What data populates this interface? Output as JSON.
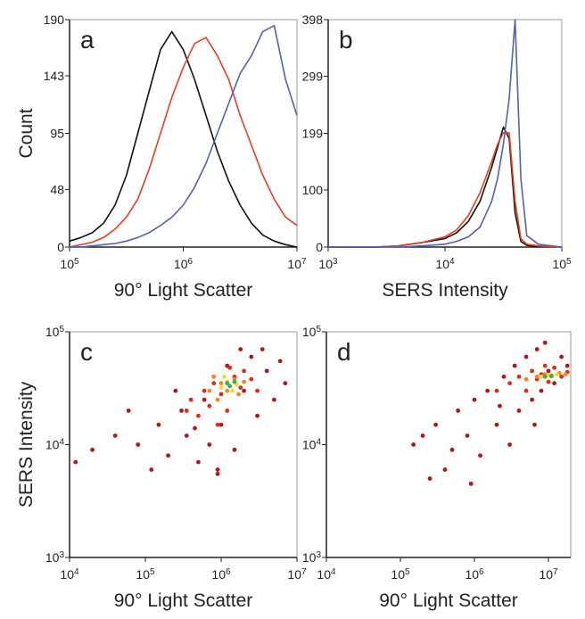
{
  "chart_data": [
    {
      "type": "line",
      "label": "a",
      "xlabel": "90° Light Scatter",
      "ylabel": "Count",
      "xscale": "log",
      "xlim": [
        100000,
        10000000
      ],
      "ylim": [
        0,
        190
      ],
      "xticks": [
        {
          "value": 100000,
          "label": "10^5"
        },
        {
          "value": 1000000,
          "label": "10^6"
        },
        {
          "value": 10000000,
          "label": "10^7"
        }
      ],
      "yticks": [
        0,
        48,
        95,
        143,
        190
      ],
      "x": [
        100000,
        125893,
        158489,
        199526,
        251189,
        316228,
        398107,
        501187,
        630957,
        794328,
        1000000,
        1258925,
        1584893,
        1995262,
        2511886,
        3162278,
        3981072,
        5011872,
        6309573,
        7943282,
        10000000
      ],
      "series": [
        {
          "color": "#111111",
          "values": [
            5,
            8,
            12,
            20,
            35,
            60,
            95,
            130,
            165,
            180,
            165,
            140,
            110,
            80,
            55,
            35,
            20,
            10,
            5,
            2,
            0
          ]
        },
        {
          "color": "#e8401c",
          "values": [
            0,
            2,
            4,
            8,
            15,
            25,
            40,
            65,
            95,
            125,
            150,
            170,
            175,
            160,
            140,
            110,
            85,
            60,
            40,
            25,
            18
          ]
        },
        {
          "color": "#5560b0",
          "values": [
            0,
            0,
            1,
            2,
            3,
            5,
            8,
            12,
            18,
            25,
            35,
            50,
            70,
            95,
            120,
            145,
            160,
            180,
            185,
            140,
            110
          ]
        }
      ]
    },
    {
      "type": "line",
      "label": "b",
      "xlabel": "SERS Intensity",
      "xscale": "log",
      "xlim": [
        1000,
        100000
      ],
      "ylim": [
        0,
        398
      ],
      "xticks": [
        {
          "value": 1000,
          "label": "10^3"
        },
        {
          "value": 10000,
          "label": "10^4"
        },
        {
          "value": 100000,
          "label": "10^5"
        }
      ],
      "yticks": [
        0,
        100,
        199,
        299,
        398
      ],
      "x": [
        1000,
        1585,
        2512,
        3981,
        6310,
        10000,
        12589,
        15849,
        19953,
        25119,
        28184,
        31623,
        35481,
        39811,
        44668,
        50119,
        63096,
        100000
      ],
      "series": [
        {
          "color": "#111111",
          "values": [
            0,
            0,
            0,
            2,
            8,
            15,
            25,
            45,
            80,
            140,
            175,
            210,
            190,
            60,
            10,
            3,
            1,
            0
          ]
        },
        {
          "color": "#e8401c",
          "values": [
            0,
            0,
            0,
            2,
            8,
            18,
            30,
            55,
            95,
            150,
            180,
            200,
            200,
            80,
            15,
            5,
            2,
            0
          ]
        },
        {
          "color": "#5560b0",
          "values": [
            0,
            0,
            0,
            0,
            2,
            5,
            10,
            18,
            35,
            80,
            120,
            180,
            260,
            398,
            120,
            20,
            5,
            0
          ]
        }
      ]
    },
    {
      "type": "scatter",
      "label": "c",
      "xlabel": "90° Light Scatter",
      "ylabel": "SERS Intensity",
      "xscale": "log",
      "yscale": "log",
      "xlim": [
        10000,
        10000000
      ],
      "ylim": [
        1000,
        100000
      ],
      "xticks": [
        {
          "value": 10000,
          "label": "10^4"
        },
        {
          "value": 100000,
          "label": "10^5"
        },
        {
          "value": 1000000,
          "label": "10^6"
        },
        {
          "value": 10000000,
          "label": "10^7"
        }
      ],
      "yticks": [
        {
          "value": 1000,
          "label": "10^3"
        },
        {
          "value": 10000,
          "label": "10^4"
        },
        {
          "value": 100000,
          "label": "10^5"
        }
      ],
      "series": [
        {
          "color": "#b01818",
          "x": [
            20000,
            40000,
            80000,
            150000,
            200000,
            300000,
            350000,
            500000,
            600000,
            700000,
            800000,
            900000,
            1000000,
            1200000,
            1500000,
            2000000,
            2500000,
            3000000,
            4000000,
            5000000,
            7000000,
            60000,
            250000,
            1800000,
            450000,
            12000,
            900000,
            3500000,
            120000,
            6000000
          ],
          "values": [
            9000,
            12000,
            10000,
            15000,
            8000,
            20000,
            12000,
            7000,
            25000,
            10000,
            40000,
            6000,
            15000,
            50000,
            9000,
            30000,
            60000,
            18000,
            45000,
            25000,
            35000,
            20000,
            30000,
            70000,
            14000,
            7000,
            5500,
            70000,
            6000,
            55000
          ]
        },
        {
          "color": "#e02a1a",
          "x": [
            400000,
            500000,
            600000,
            700000,
            800000,
            1000000,
            1200000,
            1500000,
            1800000,
            2000000,
            2500000,
            900000,
            1300000,
            3000000,
            350000
          ],
          "values": [
            25000,
            18000,
            30000,
            22000,
            35000,
            28000,
            20000,
            40000,
            32000,
            45000,
            38000,
            15000,
            48000,
            30000,
            20000
          ]
        },
        {
          "color": "#f08a20",
          "x": [
            700000,
            900000,
            1000000,
            1200000,
            1500000,
            1700000,
            800000,
            2000000
          ],
          "values": [
            30000,
            25000,
            35000,
            30000,
            38000,
            28000,
            40000,
            36000
          ]
        },
        {
          "color": "#e6e030",
          "x": [
            1000000,
            1200000,
            1400000,
            1100000,
            1600000
          ],
          "values": [
            32000,
            36000,
            30000,
            40000,
            34000
          ]
        },
        {
          "color": "#3cae48",
          "x": [
            1200000,
            1300000,
            1500000
          ],
          "values": [
            35000,
            33000,
            36000
          ]
        }
      ]
    },
    {
      "type": "scatter",
      "label": "d",
      "xlabel": "90° Light Scatter",
      "xscale": "log",
      "yscale": "log",
      "xlim": [
        10000,
        20000000
      ],
      "ylim": [
        1000,
        100000
      ],
      "xticks": [
        {
          "value": 10000,
          "label": "10^4"
        },
        {
          "value": 100000,
          "label": "10^5"
        },
        {
          "value": 1000000,
          "label": "10^6"
        },
        {
          "value": 10000000,
          "label": "10^7"
        }
      ],
      "yticks": [
        {
          "value": 1000,
          "label": "10^3"
        },
        {
          "value": 10000,
          "label": "10^4"
        },
        {
          "value": 100000,
          "label": "10^5"
        }
      ],
      "series": [
        {
          "color": "#b01818",
          "x": [
            150000,
            300000,
            400000,
            600000,
            800000,
            1000000,
            1200000,
            1500000,
            2000000,
            2500000,
            3000000,
            3500000,
            4000000,
            5000000,
            6000000,
            7000000,
            8000000,
            9000000,
            10000000,
            12000000,
            15000000,
            18000000,
            500000,
            2200000,
            900000,
            200000,
            6500000,
            250000
          ],
          "values": [
            10000,
            15000,
            6000,
            20000,
            12000,
            25000,
            8000,
            30000,
            15000,
            40000,
            10000,
            50000,
            20000,
            60000,
            25000,
            70000,
            30000,
            80000,
            45000,
            35000,
            60000,
            50000,
            9000,
            22000,
            4500,
            12000,
            15000,
            5000
          ]
        },
        {
          "color": "#e02a1a",
          "x": [
            3000000,
            4000000,
            5000000,
            6000000,
            7000000,
            8000000,
            10000000,
            12000000,
            15000000,
            2000000,
            9000000,
            18000000
          ],
          "values": [
            35000,
            40000,
            30000,
            45000,
            38000,
            42000,
            36000,
            48000,
            40000,
            30000,
            50000,
            44000
          ]
        },
        {
          "color": "#f08a20",
          "x": [
            5000000,
            7000000,
            9000000,
            11000000,
            14000000,
            17000000
          ],
          "values": [
            38000,
            40000,
            42000,
            41000,
            43000,
            42000
          ]
        },
        {
          "color": "#e6e030",
          "x": [
            8000000,
            10000000,
            13000000
          ],
          "values": [
            40000,
            41000,
            42000
          ]
        },
        {
          "color": "#3cae48",
          "x": [
            9000000,
            11000000
          ],
          "values": [
            40000,
            40500
          ]
        }
      ]
    }
  ]
}
